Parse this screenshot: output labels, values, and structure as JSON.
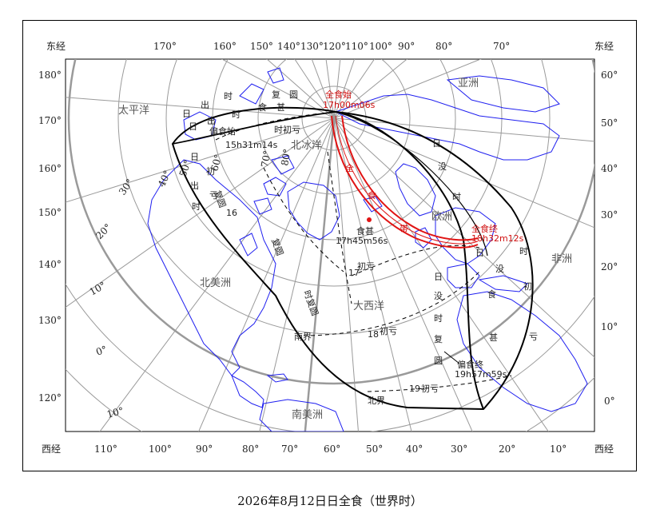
{
  "map": {
    "corner_labels": {
      "top_left": "东经",
      "top_right": "东经",
      "bottom_left": "西经",
      "bottom_right": "西经"
    },
    "top_ticks": [
      "170°",
      "160°",
      "150°",
      "140°",
      "130°",
      "120°",
      "110°",
      "100°",
      "90°",
      "80°",
      "70°"
    ],
    "bottom_ticks": [
      "110°",
      "100°",
      "90°",
      "80°",
      "70°",
      "60°",
      "50°",
      "40°",
      "30°",
      "20°",
      "10°"
    ],
    "left_ticks": [
      "180°",
      "170°",
      "160°",
      "150°",
      "140°",
      "130°",
      "120°"
    ],
    "right_ticks": [
      "60°",
      "50°",
      "40°",
      "30°",
      "20°",
      "10°",
      "0°"
    ],
    "interior_latitudes": [
      "10°",
      "20°",
      "30°",
      "40°",
      "50°",
      "60°",
      "70°",
      "80°",
      "0°",
      "10°"
    ],
    "regions": [
      "太平洋",
      "亚洲",
      "北冰洋",
      "欧洲",
      "非洲",
      "北美洲",
      "大西洋",
      "南美洲"
    ],
    "path_labels": {
      "rise_south": [
        "日",
        "出",
        "时",
        "食",
        "甚"
      ],
      "rise_north": [
        "日",
        "出",
        "时",
        "复",
        "圆"
      ],
      "set_edge": [
        "日",
        "出",
        "时",
        "初",
        "亏"
      ],
      "start_partial": "偏食始",
      "start_partial_time": "15h31m14s",
      "first_contact_1": "时初亏",
      "first_contact_2": "17",
      "first_contact_2b": "初亏",
      "first_contact_3": "18",
      "first_contact_3b": "初亏",
      "first_contact_4": "19",
      "first_contact_4b": "初亏",
      "set_right": [
        "日",
        "没",
        "时",
        "初",
        "亏"
      ],
      "set_mid": [
        "日",
        "没",
        "时",
        "食",
        "甚"
      ],
      "set_left": [
        "日",
        "没",
        "时",
        "复",
        "圆"
      ],
      "end_partial": "偏食终",
      "end_partial_time": "19h57m59s",
      "max_max": "食甚",
      "max_time": "17h45m56s",
      "north_limit": "北界",
      "south_limit": "南界",
      "restore_1": "复圆",
      "restore_2": "复圆",
      "restore_1_num": "16",
      "restore_2_num": "17",
      "restore_3": "时复圆",
      "restore_3_num": "18",
      "latitude_16": "16",
      "latitude_17": "17",
      "latitude_18": "18"
    },
    "total_labels": {
      "start": "全食始",
      "start_time": "17h00m06s",
      "end": "全食终",
      "end_time": "18h32m12s",
      "band": [
        "全",
        "食",
        "带"
      ],
      "max_label": "食甚",
      "max_time": "17h45m56s"
    },
    "colors": {
      "grid": "#9a9a9a",
      "coast": "#1f1ff0",
      "total": "#e01414",
      "line": "#000000"
    }
  },
  "caption": "2026年8月12日日全食（世界时）"
}
